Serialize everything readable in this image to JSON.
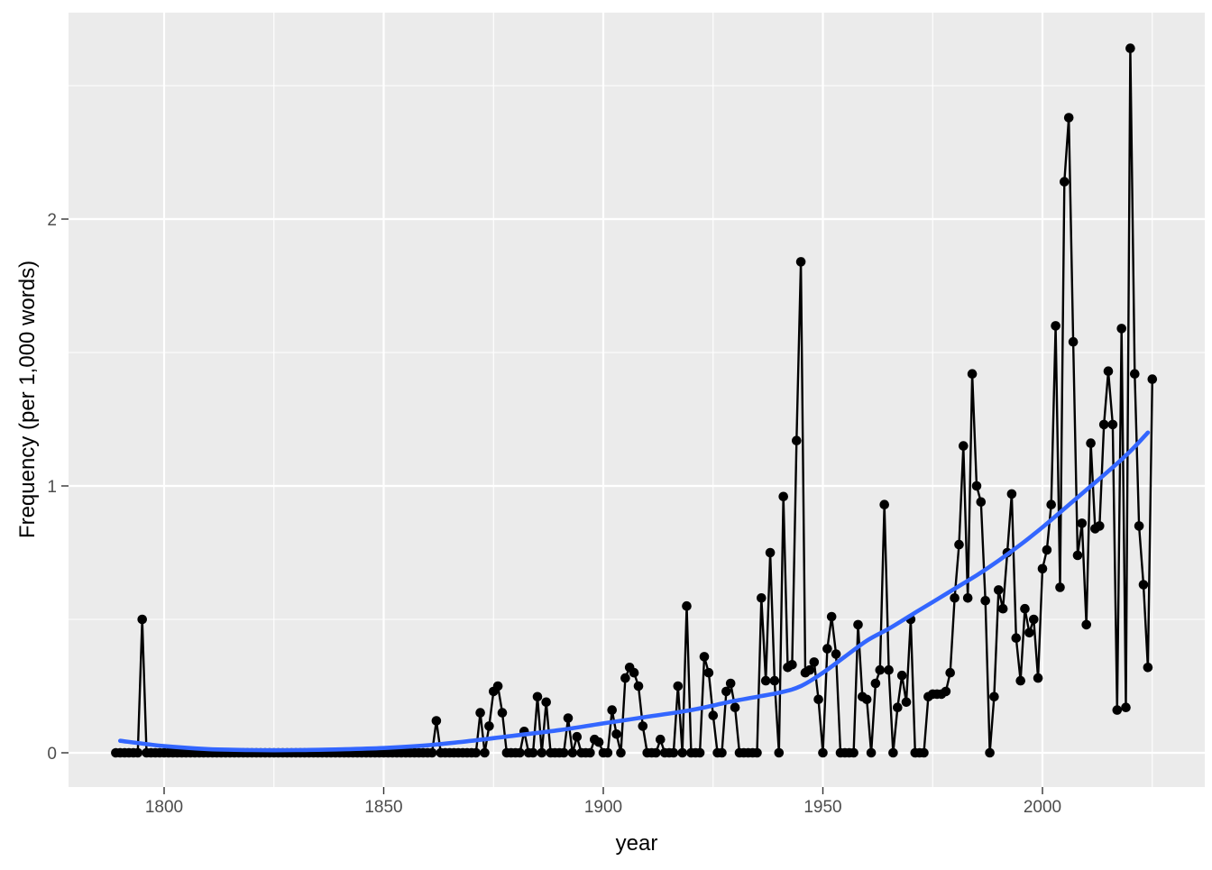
{
  "figure": {
    "background": "#ffffff",
    "panel_background": "#ebebeb",
    "grid_color": "#ffffff",
    "tick_color": "#333333",
    "tick_label_color": "#4d4d4d",
    "point_color": "#000000",
    "line_color": "#000000",
    "smooth_color": "#3366ff"
  },
  "chart_data": {
    "type": "line",
    "title": "",
    "xlabel": "year",
    "ylabel": "Frequency (per 1,000 words)",
    "x_major_ticks": [
      1800,
      1850,
      1900,
      1950,
      2000
    ],
    "x_minor_ticks": [
      1825,
      1875,
      1925,
      1975,
      2025
    ],
    "y_major_ticks": [
      0,
      1,
      2
    ],
    "y_minor_ticks": [
      0.5,
      1.5,
      2.5
    ],
    "xlim": [
      1778,
      2036
    ],
    "ylim": [
      -0.13,
      2.77
    ],
    "grid": true,
    "legend": "none",
    "series": [
      {
        "name": "yearly-frequency",
        "type": "scatter-line",
        "start_year": 1789,
        "values": [
          0,
          0,
          0,
          0,
          0,
          0,
          0.5,
          0,
          0,
          0,
          0,
          0,
          0,
          0,
          0,
          0,
          0,
          0,
          0,
          0,
          0,
          0,
          0,
          0,
          0,
          0,
          0,
          0,
          0,
          0,
          0,
          0,
          0,
          0,
          0,
          0,
          0,
          0,
          0,
          0,
          0,
          0,
          0,
          0,
          0,
          0,
          0,
          0,
          0,
          0,
          0,
          0,
          0,
          0,
          0,
          0,
          0,
          0,
          0,
          0,
          0,
          0,
          0,
          0,
          0,
          0,
          0,
          0,
          0,
          0,
          0,
          0,
          0,
          0.12,
          0,
          0,
          0,
          0,
          0,
          0,
          0,
          0,
          0,
          0.15,
          0,
          0.1,
          0.23,
          0.25,
          0.15,
          0,
          0,
          0,
          0,
          0.08,
          0,
          0,
          0.21,
          0,
          0.19,
          0,
          0,
          0,
          0,
          0.13,
          0,
          0.06,
          0,
          0,
          0,
          0.05,
          0.04,
          0,
          0,
          0.16,
          0.07,
          0,
          0.28,
          0.32,
          0.3,
          0.25,
          0.1,
          0,
          0,
          0,
          0.05,
          0,
          0,
          0,
          0.25,
          0,
          0.55,
          0,
          0,
          0,
          0.36,
          0.3,
          0.14,
          0,
          0,
          0.23,
          0.26,
          0.17,
          0,
          0,
          0,
          0,
          0,
          0.58,
          0.27,
          0.75,
          0.27,
          0,
          0.96,
          0.32,
          0.33,
          1.17,
          1.84,
          0.3,
          0.31,
          0.34,
          0.2,
          0,
          0.39,
          0.51,
          0.37,
          0,
          0,
          0,
          0,
          0.48,
          0.21,
          0.2,
          0,
          0.26,
          0.31,
          0.93,
          0.31,
          0,
          0.17,
          0.29,
          0.19,
          0.5,
          0,
          0,
          0,
          0.21,
          0.22,
          0.22,
          0.22,
          0.23,
          0.3,
          0.58,
          0.78,
          1.15,
          0.58,
          1.42,
          1.0,
          0.94,
          0.57,
          0,
          0.21,
          0.61,
          0.54,
          0.75,
          0.97,
          0.43,
          0.27,
          0.54,
          0.45,
          0.5,
          0.28,
          0.69,
          0.76,
          0.93,
          1.6,
          0.62,
          2.14,
          2.38,
          1.54,
          0.74,
          0.86,
          0.48,
          1.16,
          0.84,
          0.85,
          1.23,
          1.43,
          1.23,
          0.16,
          1.59,
          0.17,
          2.64,
          1.42,
          0.85,
          0.63,
          0.32,
          1.4
        ]
      },
      {
        "name": "smooth-trend",
        "type": "smooth",
        "points": [
          [
            1790,
            0.045
          ],
          [
            1800,
            0.025
          ],
          [
            1810,
            0.014
          ],
          [
            1820,
            0.01
          ],
          [
            1830,
            0.01
          ],
          [
            1840,
            0.013
          ],
          [
            1850,
            0.018
          ],
          [
            1860,
            0.028
          ],
          [
            1870,
            0.045
          ],
          [
            1880,
            0.065
          ],
          [
            1890,
            0.085
          ],
          [
            1900,
            0.11
          ],
          [
            1910,
            0.135
          ],
          [
            1920,
            0.16
          ],
          [
            1930,
            0.195
          ],
          [
            1940,
            0.225
          ],
          [
            1945,
            0.25
          ],
          [
            1950,
            0.3
          ],
          [
            1955,
            0.36
          ],
          [
            1960,
            0.42
          ],
          [
            1965,
            0.465
          ],
          [
            1970,
            0.515
          ],
          [
            1975,
            0.565
          ],
          [
            1980,
            0.615
          ],
          [
            1985,
            0.665
          ],
          [
            1990,
            0.72
          ],
          [
            1995,
            0.78
          ],
          [
            2000,
            0.845
          ],
          [
            2005,
            0.915
          ],
          [
            2010,
            0.985
          ],
          [
            2015,
            1.055
          ],
          [
            2020,
            1.13
          ],
          [
            2024,
            1.2
          ]
        ]
      }
    ]
  }
}
